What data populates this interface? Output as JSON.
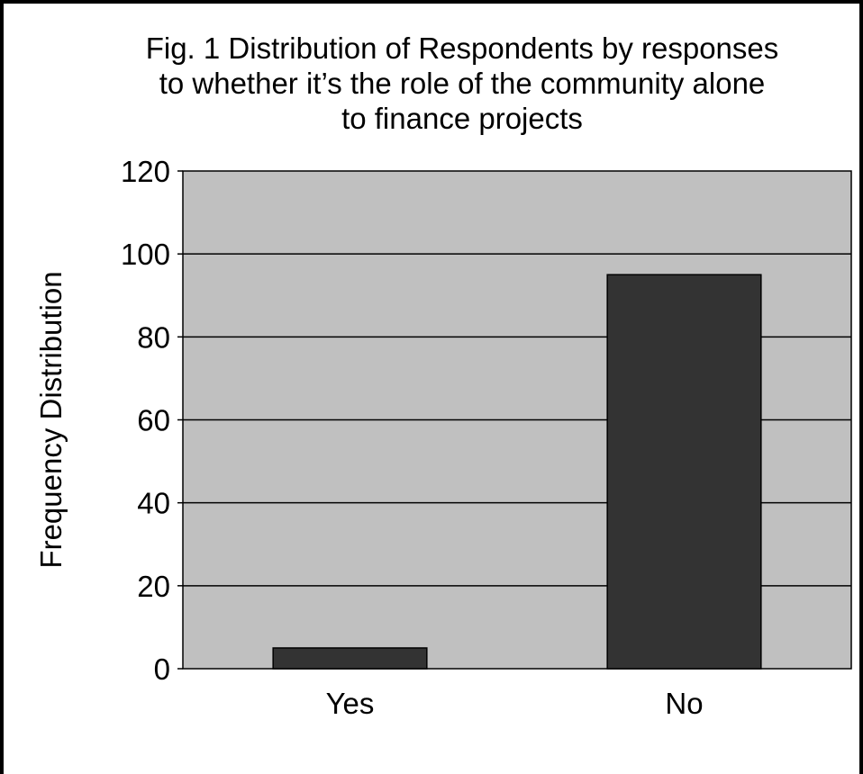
{
  "chart_data": {
    "type": "bar",
    "title_lines": [
      "Fig. 1 Distribution of Respondents by responses",
      "to whether it’s the role of the community alone",
      "to finance projects"
    ],
    "xlabel": "",
    "ylabel": "Frequency Distribution",
    "categories": [
      "Yes",
      "No"
    ],
    "values": [
      5,
      95
    ],
    "ylim": [
      0,
      120
    ],
    "yticks": [
      "0",
      "20",
      "40",
      "60",
      "80",
      "100",
      "120"
    ],
    "grid": true,
    "legend": "none",
    "colors": {
      "plot_background": "#c0c0c0",
      "bar_fill": "#333333",
      "bar_stroke": "#000000",
      "gridline": "#000000"
    }
  }
}
